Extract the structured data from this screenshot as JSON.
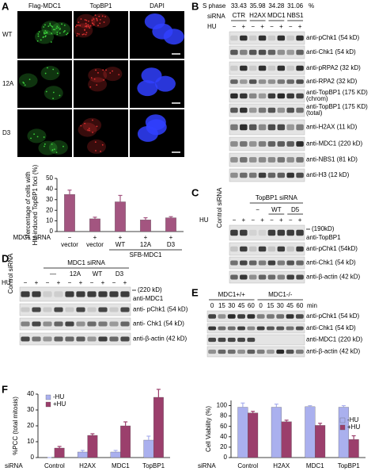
{
  "panel_labels": [
    "A",
    "B",
    "C",
    "D",
    "E",
    "F"
  ],
  "panel_a": {
    "columns": [
      "Flag-MDC1",
      "TopBP1",
      "DAPI"
    ],
    "rows": [
      "WT",
      "12A",
      "D3"
    ]
  },
  "panel_b": {
    "s_phase_label": "S phase",
    "s_phase": [
      33.43,
      35.98,
      34.28,
      31.06
    ],
    "s_phase_unit": "%",
    "sirna_label": "siRNA",
    "sirna": [
      "CTR",
      "H2AX",
      "MDC1",
      "NBS1"
    ],
    "hu_label": "HU",
    "hu": [
      "−",
      "+",
      "−",
      "+",
      "−",
      "+",
      "−",
      "+"
    ],
    "rows": [
      {
        "label": "anti-pChk1 (54 kD)"
      },
      {
        "label": "anti-Chk1 (54 kD)"
      },
      {
        "label": "anti-pRPA2 (32 kD)"
      },
      {
        "label": "anti-RPA2 (32 kD)"
      },
      {
        "label": "anti-TopBP1 (175 KD)",
        "note": "(chrom)"
      },
      {
        "label": "anti-TopBP1 (175 KD)",
        "note": "(total)"
      },
      {
        "label": "anti-H2AX (11 kD)"
      },
      {
        "label": "anti-MDC1 (220 kD)"
      },
      {
        "label": "anti-NBS1 (81 kD)"
      },
      {
        "label": "anti-H3 (12 kD)"
      }
    ]
  },
  "panel_c": {
    "control": "Control siRNA",
    "group": "TopBP1 siRNA",
    "subgroups": [
      "−",
      "WT",
      "D5"
    ],
    "hu_label": "HU",
    "hu": [
      "−",
      "+",
      "−",
      "+",
      "−",
      "+",
      "−",
      "+"
    ],
    "marker": "(190kD)",
    "rows": [
      "anti-TopBP1",
      "anti-pChk1 (54kD)",
      "anti-Chk1 (54 kD)",
      "anti-β-actin (42 kD)"
    ]
  },
  "panel_d": {
    "control": "Control siRNA",
    "group": "MDC1 siRNA",
    "subgroups": [
      "—",
      "12A",
      "WT",
      "D3"
    ],
    "hu_label": "HU",
    "hu": [
      "−",
      "+",
      "−",
      "+",
      "−",
      "+",
      "−",
      "+",
      "−",
      "+"
    ],
    "marker": "(220 kD)",
    "rows": [
      "anti-MDC1",
      "anti- pChk1 (54 kD)",
      "anti- Chk1 (54 kD)",
      "anti-β-actin (42 kD)"
    ]
  },
  "panel_e": {
    "groups": [
      "MDC1+/+",
      "MDC1-/-"
    ],
    "minutes": [
      0,
      15,
      30,
      45,
      60,
      0,
      15,
      30,
      45,
      60
    ],
    "min_label": "min",
    "rows": [
      "anti-pChk1 (54 kD)",
      "anti-Chk1 (54 kD)",
      "anti-MDC1 (220 kD)",
      "anti-β-actin (42 kD)"
    ]
  },
  "chart_data": [
    {
      "type": "bar",
      "y_label": [
        "Percentage of cells with",
        "HU-induced TopBP1 foci (%)"
      ],
      "categories": [
        "vector",
        "vector",
        "WT",
        "12A",
        "D3"
      ],
      "sirna_label": "MDC1 siRNA",
      "sirna": [
        "−",
        "+",
        "+",
        "+",
        "+"
      ],
      "group_label": "SFB-MDC1",
      "values": [
        35,
        12,
        28,
        11,
        13
      ],
      "errors": [
        4,
        1.5,
        6,
        2,
        1
      ],
      "color": "#a35580",
      "ylim": [
        0,
        50
      ],
      "yticks": [
        0,
        10,
        20,
        30,
        40,
        50
      ]
    },
    {
      "type": "bar",
      "y_label": "%PCC (total mitosis)",
      "x_label": "siRNA",
      "categories": [
        "Control",
        "H2AX",
        "MDC1",
        "TopBP1"
      ],
      "series": [
        {
          "name": "-HU",
          "color": "#aab0ee",
          "values": [
            0,
            3.5,
            3.5,
            11
          ],
          "errors": [
            0,
            1,
            1,
            2.5
          ]
        },
        {
          "name": "+HU",
          "color": "#9b3f6c",
          "values": [
            6,
            14,
            20,
            38
          ],
          "errors": [
            1,
            1,
            2.5,
            5
          ]
        }
      ],
      "ylim": [
        0,
        40
      ],
      "yticks": [
        0,
        10,
        20,
        30,
        40
      ],
      "legend": "upper left"
    },
    {
      "type": "bar",
      "y_label": "Cell Viability (%)",
      "x_label": "siRNA",
      "categories": [
        "Control",
        "H2AX",
        "MDC1",
        "TopBP1"
      ],
      "series": [
        {
          "name": "-HU",
          "color": "#aab0ee",
          "values": [
            97,
            97,
            98,
            97
          ],
          "errors": [
            8,
            6,
            2,
            3
          ]
        },
        {
          "name": "+HU",
          "color": "#9b3f6c",
          "values": [
            86,
            69,
            62,
            35
          ],
          "errors": [
            3,
            3,
            4,
            7
          ]
        }
      ],
      "ylim": [
        0,
        110
      ],
      "yticks": [
        0,
        20,
        40,
        60,
        80,
        100
      ],
      "legend": "right"
    }
  ]
}
